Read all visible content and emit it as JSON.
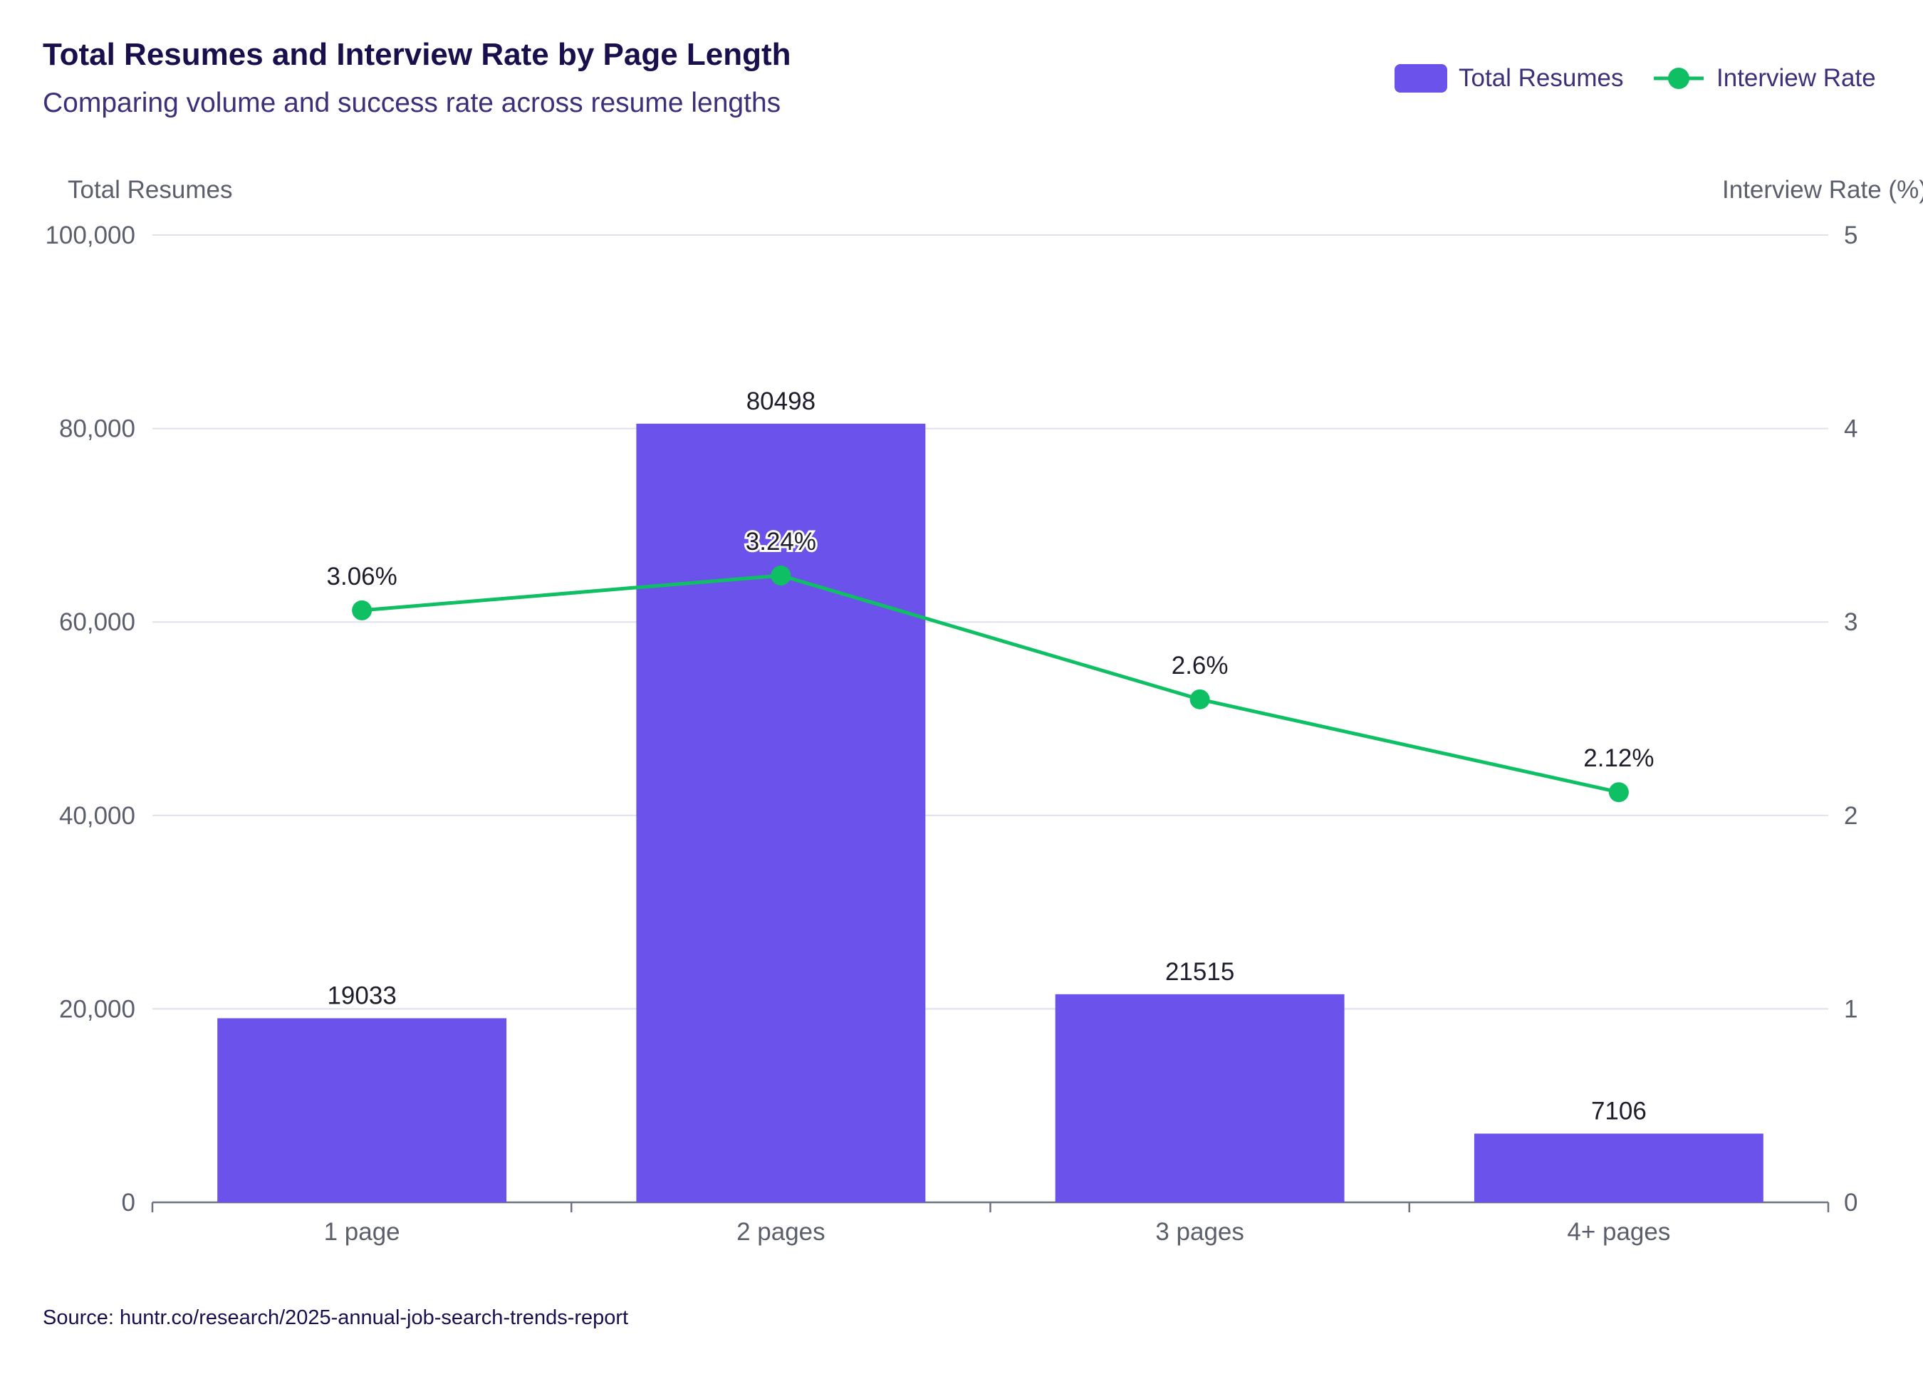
{
  "header": {
    "title": "Total Resumes and Interview Rate by Page Length",
    "subtitle": "Comparing volume and success rate across resume lengths"
  },
  "legend": {
    "bar_label": "Total Resumes",
    "line_label": "Interview Rate"
  },
  "footer": {
    "source": "Source: huntr.co/research/2025-annual-job-search-trends-report"
  },
  "colors": {
    "bar": "#6b52eb",
    "line": "#0fbf63",
    "grid": "#dde1ee",
    "axis": "#6d7280"
  },
  "chart_data": {
    "type": "bar",
    "categories": [
      "1 page",
      "2 pages",
      "3 pages",
      "4+ pages"
    ],
    "series": [
      {
        "name": "Total Resumes",
        "type": "bar",
        "axis": "left",
        "values": [
          19033,
          80498,
          21515,
          7106
        ],
        "labels": [
          "19033",
          "80498",
          "21515",
          "7106"
        ]
      },
      {
        "name": "Interview Rate",
        "type": "line",
        "axis": "right",
        "values": [
          3.06,
          3.24,
          2.6,
          2.12
        ],
        "labels": [
          "3.06%",
          "3.24%",
          "2.6%",
          "2.12%"
        ]
      }
    ],
    "y_left": {
      "label": "Total Resumes",
      "range": [
        0,
        100000
      ],
      "ticks": [
        "0",
        "20,000",
        "40,000",
        "60,000",
        "80,000",
        "100,000"
      ]
    },
    "y_right": {
      "label": "Interview Rate (%)",
      "range": [
        0,
        5
      ],
      "ticks": [
        "0",
        "1",
        "2",
        "3",
        "4",
        "5"
      ]
    },
    "grid": true,
    "legend_position": "top-right"
  }
}
